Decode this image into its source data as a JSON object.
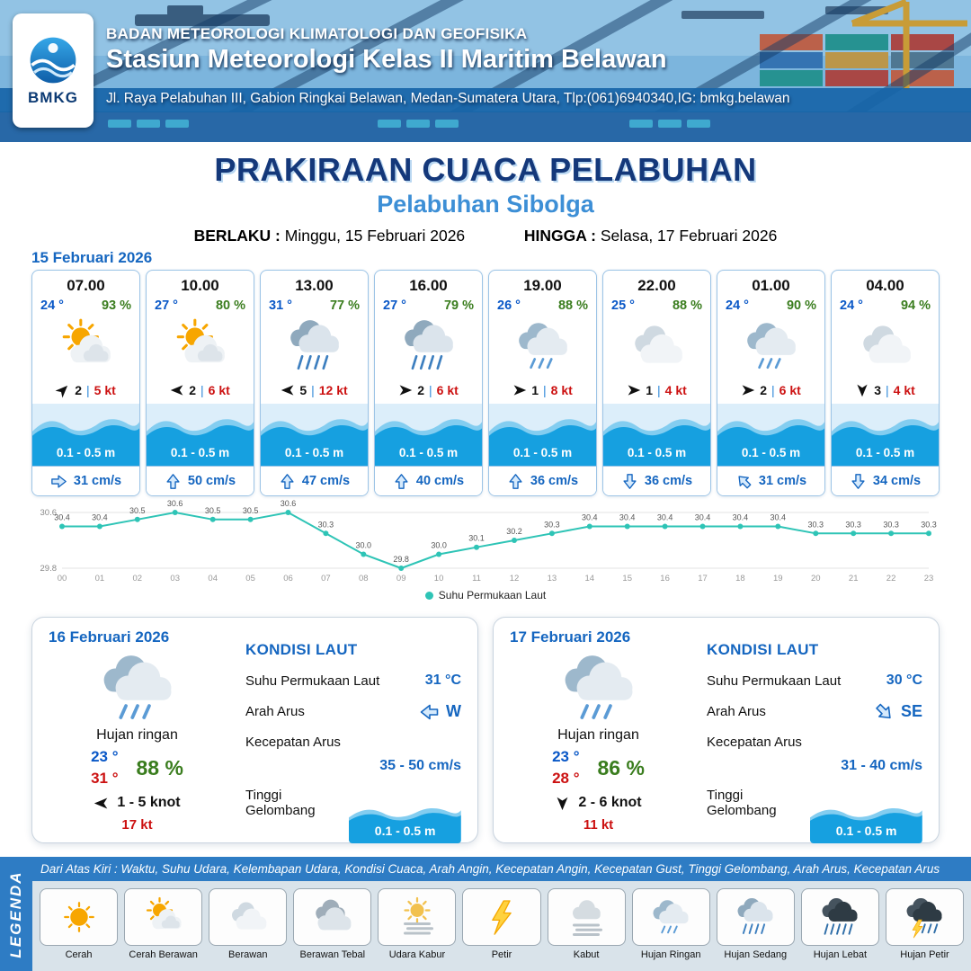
{
  "header": {
    "logo_text": "BMKG",
    "line1": "BADAN METEOROLOGI KLIMATOLOGI DAN GEOFISIKA",
    "line2": "Stasiun Meteorologi Kelas II Maritim Belawan",
    "line3": "Jl. Raya Pelabuhan III, Gabion Ringkai Belawan, Medan-Sumatera Utara, Tlp:(061)6940340,IG: bmkg.belawan"
  },
  "title": {
    "main": "PRAKIRAAN CUACA PELABUHAN",
    "port": "Pelabuhan Sibolga",
    "valid_from_label": "BERLAKU :",
    "valid_from": "Minggu, 15 Februari 2026",
    "valid_to_label": "HINGGA :",
    "valid_to": "Selasa, 17 Februari 2026"
  },
  "day1_date": "15 Februari 2026",
  "hourly": [
    {
      "time": "07.00",
      "temp": "24 °",
      "humidity": "93 %",
      "icon": "cerah-berawan",
      "wind_dir": "NE",
      "wind_speed": "2",
      "gust": "5 kt",
      "wave": "0.1 - 0.5 m",
      "current_dir": "E",
      "current": "31 cm/s"
    },
    {
      "time": "10.00",
      "temp": "27 °",
      "humidity": "80 %",
      "icon": "cerah-berawan",
      "wind_dir": "W",
      "wind_speed": "2",
      "gust": "6 kt",
      "wave": "0.1 - 0.5 m",
      "current_dir": "N",
      "current": "50 cm/s"
    },
    {
      "time": "13.00",
      "temp": "31 °",
      "humidity": "77 %",
      "icon": "hujan-sedang",
      "wind_dir": "W",
      "wind_speed": "5",
      "gust": "12 kt",
      "wave": "0.1 - 0.5 m",
      "current_dir": "N",
      "current": "47 cm/s"
    },
    {
      "time": "16.00",
      "temp": "27 °",
      "humidity": "79 %",
      "icon": "hujan-sedang",
      "wind_dir": "E",
      "wind_speed": "2",
      "gust": "6 kt",
      "wave": "0.1 - 0.5 m",
      "current_dir": "N",
      "current": "40 cm/s"
    },
    {
      "time": "19.00",
      "temp": "26 °",
      "humidity": "88 %",
      "icon": "hujan-ringan",
      "wind_dir": "E",
      "wind_speed": "1",
      "gust": "8 kt",
      "wave": "0.1 - 0.5 m",
      "current_dir": "N",
      "current": "36 cm/s"
    },
    {
      "time": "22.00",
      "temp": "25 °",
      "humidity": "88 %",
      "icon": "berawan",
      "wind_dir": "E",
      "wind_speed": "1",
      "gust": "4 kt",
      "wave": "0.1 - 0.5 m",
      "current_dir": "S",
      "current": "36 cm/s"
    },
    {
      "time": "01.00",
      "temp": "24 °",
      "humidity": "90 %",
      "icon": "hujan-ringan",
      "wind_dir": "E",
      "wind_speed": "2",
      "gust": "6 kt",
      "wave": "0.1 - 0.5 m",
      "current_dir": "NW",
      "current": "31 cm/s"
    },
    {
      "time": "04.00",
      "temp": "24 °",
      "humidity": "94 %",
      "icon": "berawan",
      "wind_dir": "S",
      "wind_speed": "3",
      "gust": "4 kt",
      "wave": "0.1 - 0.5 m",
      "current_dir": "S",
      "current": "34 cm/s"
    }
  ],
  "chart_data": {
    "type": "line",
    "title": "",
    "x": [
      "00",
      "01",
      "02",
      "03",
      "04",
      "05",
      "06",
      "07",
      "08",
      "09",
      "10",
      "11",
      "12",
      "13",
      "14",
      "15",
      "16",
      "17",
      "18",
      "19",
      "20",
      "21",
      "22",
      "23"
    ],
    "series": [
      {
        "name": "Suhu Permukaan Laut",
        "values": [
          30.4,
          30.4,
          30.5,
          30.6,
          30.5,
          30.5,
          30.6,
          30.3,
          30.0,
          29.8,
          30.0,
          30.1,
          30.2,
          30.3,
          30.4,
          30.4,
          30.4,
          30.4,
          30.4,
          30.4,
          30.3,
          30.3,
          30.3,
          30.3
        ]
      }
    ],
    "ylim": [
      29.8,
      30.6
    ],
    "yticks": [
      "30.6",
      "29.8"
    ],
    "legend": "Suhu Permukaan Laut",
    "legend_position": "bottom",
    "grid": false,
    "line_color": "#2ec4b6"
  },
  "day_cards": [
    {
      "date": "16 Februari 2026",
      "icon": "hujan-ringan",
      "condition": "Hujan ringan",
      "temp_min": "23 °",
      "humidity": "88 %",
      "temp_max": "31 °",
      "wind_dir": "W",
      "wind_range": "1 - 5 knot",
      "gust": "17 kt",
      "sea_title": "KONDISI LAUT",
      "sst_label": "Suhu Permukaan Laut",
      "sst": "31 °C",
      "current_label": "Arah Arus",
      "current_dir": "W",
      "current_speed_label": "Kecepatan Arus",
      "current_speed": "35 - 50 cm/s",
      "wave_label": "Tinggi Gelombang",
      "wave": "0.1 - 0.5 m"
    },
    {
      "date": "17 Februari 2026",
      "icon": "hujan-ringan",
      "condition": "Hujan ringan",
      "temp_min": "23 °",
      "humidity": "86 %",
      "temp_max": "28 °",
      "wind_dir": "S",
      "wind_range": "2 - 6 knot",
      "gust": "11 kt",
      "sea_title": "KONDISI LAUT",
      "sst_label": "Suhu Permukaan Laut",
      "sst": "30 °C",
      "current_label": "Arah Arus",
      "current_dir": "SE",
      "current_speed_label": "Kecepatan Arus",
      "current_speed": "31 - 40 cm/s",
      "wave_label": "Tinggi Gelombang",
      "wave": "0.1 - 0.5 m"
    }
  ],
  "legend": {
    "info": "Dari Atas Kiri : Waktu, Suhu Udara, Kelembapan Udara, Kondisi Cuaca, Arah Angin, Kecepatan Angin, Kecepatan Gust, Tinggi Gelombang, Arah Arus, Kecepatan Arus",
    "vertical_label": "LEGENDA",
    "items": [
      {
        "label": "Cerah",
        "icon": "cerah"
      },
      {
        "label": "Cerah Berawan",
        "icon": "cerah-berawan"
      },
      {
        "label": "Berawan",
        "icon": "berawan"
      },
      {
        "label": "Berawan Tebal",
        "icon": "berawan-tebal"
      },
      {
        "label": "Udara Kabur",
        "icon": "udara-kabur"
      },
      {
        "label": "Petir",
        "icon": "petir"
      },
      {
        "label": "Kabut",
        "icon": "kabut"
      },
      {
        "label": "Hujan Ringan",
        "icon": "hujan-ringan"
      },
      {
        "label": "Hujan Sedang",
        "icon": "hujan-sedang"
      },
      {
        "label": "Hujan Lebat",
        "icon": "hujan-lebat"
      },
      {
        "label": "Hujan Petir",
        "icon": "hujan-petir"
      }
    ]
  },
  "colors": {
    "accent_blue": "#1566c0",
    "temp_blue": "#0a58c7",
    "humidity_green": "#3a7d1e",
    "gust_red": "#cc1111",
    "wave_blue": "#16a0e0",
    "header_blue": "#2e7cc4",
    "title_navy": "#14387a",
    "port_blue": "#3d8fd6",
    "sst_line": "#2ec4b6"
  }
}
